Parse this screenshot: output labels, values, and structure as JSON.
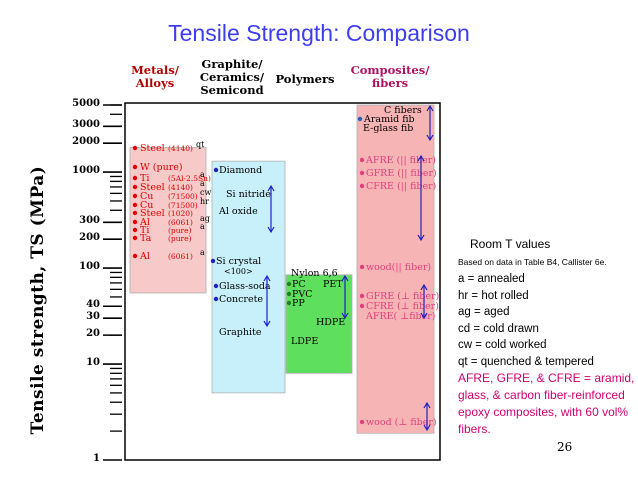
{
  "chart_data": {
    "type": "range-bar",
    "title": "Tensile Strength: Comparison",
    "ylabel": "Tensile  strength, TS   (MPa)",
    "scale": "log",
    "ylim": [
      1,
      5000
    ],
    "yticks": [
      {
        "value": 5000,
        "label": "5000"
      },
      {
        "value": 3000,
        "label": "3000"
      },
      {
        "value": 2000,
        "label": "2000"
      },
      {
        "value": 1000,
        "label": "1000"
      },
      {
        "value": 300,
        "label": "300"
      },
      {
        "value": 200,
        "label": "200"
      },
      {
        "value": 100,
        "label": "100"
      },
      {
        "value": 40,
        "label": "40"
      },
      {
        "value": 30,
        "label": "30"
      },
      {
        "value": 20,
        "label": "20"
      },
      {
        "value": 10,
        "label": "10"
      },
      {
        "value": 1,
        "label": "1"
      }
    ],
    "categories": [
      {
        "name": "Metals/\nAlloys",
        "color": "#b00000",
        "fill": "#f7c9c9",
        "range": [
          55,
          1800
        ],
        "materials": [
          {
            "label": "Steel",
            "note": "(4140)",
            "suffix": "qt",
            "value": 1600
          },
          {
            "label": "W (pure)",
            "note": "",
            "suffix": "",
            "value": 900
          },
          {
            "label": "Ti",
            "note": "(5Al-2.5Sn)",
            "suffix": "a",
            "value": 790
          },
          {
            "label": "Steel",
            "note": "(4140)",
            "suffix": "a",
            "value": 650
          },
          {
            "label": "Cu",
            "note": "(71500)",
            "suffix": "cw",
            "value": 550
          },
          {
            "label": "Cu",
            "note": "(71500)",
            "suffix": "hr",
            "value": 380
          },
          {
            "label": "Steel",
            "note": "(1020)",
            "suffix": "",
            "value": 330
          },
          {
            "label": "Al",
            "note": "(6061)",
            "suffix": "ag",
            "value": 300
          },
          {
            "label": "Ti",
            "note": "(pure)",
            "suffix": "a",
            "value": 240
          },
          {
            "label": "Ta",
            "note": "(pure)",
            "suffix": "",
            "value": 200
          },
          {
            "label": "Al",
            "note": "(6061)",
            "suffix": "a",
            "value": 125
          }
        ]
      },
      {
        "name": "Graphite/\nCeramics/\nSemicond",
        "color": "#000000",
        "fill": "#c8f0fa",
        "range": [
          5,
          1300
        ],
        "materials": [
          {
            "label": "Diamond",
            "value": 1050
          },
          {
            "label": "Si nitride",
            "value": 650
          },
          {
            "label": "Al oxide",
            "value": 420
          },
          {
            "label": "Si crystal",
            "sub": "<100>",
            "value": 170
          },
          {
            "label": "Glass-soda",
            "value": 68
          },
          {
            "label": "Concrete",
            "value": 45
          },
          {
            "label": "Graphite",
            "value": 15
          }
        ]
      },
      {
        "name": "Polymers",
        "color": "#000000",
        "fill": "#5ee05e",
        "range": [
          8,
          85
        ],
        "materials": [
          {
            "label": "Nylon 6,6",
            "value": 80
          },
          {
            "label": "PC",
            "value": 65
          },
          {
            "label": "PET",
            "value": 55
          },
          {
            "label": "PVC",
            "value": 50
          },
          {
            "label": "PP",
            "value": 34
          },
          {
            "label": "HDPE",
            "value": 25
          },
          {
            "label": "LDPE",
            "value": 12
          }
        ]
      },
      {
        "name": "Composites/\nfibers",
        "color": "#b01060",
        "fill": "#f7b4b4",
        "range": [
          1.9,
          5000
        ],
        "materials": [
          {
            "label": "C fibers",
            "value": 4000
          },
          {
            "label": "Aramid fib",
            "value": 3600
          },
          {
            "label": "E-glass fib",
            "value": 3300
          },
          {
            "label": "AFRE (|| fiber)",
            "value": 1350
          },
          {
            "label": "GFRE (|| fiber)",
            "value": 1050
          },
          {
            "label": "CFRE (|| fiber)",
            "value": 800
          },
          {
            "label": "wood(|| fiber)",
            "value": 108
          },
          {
            "label": "GFRE (⊥ fiber)",
            "value": 40
          },
          {
            "label": "CFRE (⊥ fiber)",
            "value": 31
          },
          {
            "label": "AFRE( ⊥fiber)",
            "value": 27
          },
          {
            "label": "wood  (⊥ fiber)",
            "value": 2.3
          }
        ]
      }
    ]
  },
  "legend": {
    "heading": "Room T values",
    "source": "Based on data in Table B4, Callister 6e.",
    "items": [
      "a     = annealed",
      "hr   = hot rolled",
      "ag  = aged",
      "cd  = cold drawn",
      "cw = cold worked",
      "qt   = quenched & tempered"
    ],
    "note": "AFRE, GFRE, & CFRE = aramid, glass, & carbon fiber-reinforced epoxy composites, with 60 vol% fibers."
  },
  "page_number": "26",
  "colors": {
    "title": "#3d3df0",
    "metals": "#f7c9c9",
    "ceramics": "#c8f0fa",
    "polymers": "#5ee05e",
    "composites": "#f7b4b4",
    "marker_red": "#e00000",
    "marker_blue": "#2020c0",
    "marker_pink": "#e04080"
  }
}
